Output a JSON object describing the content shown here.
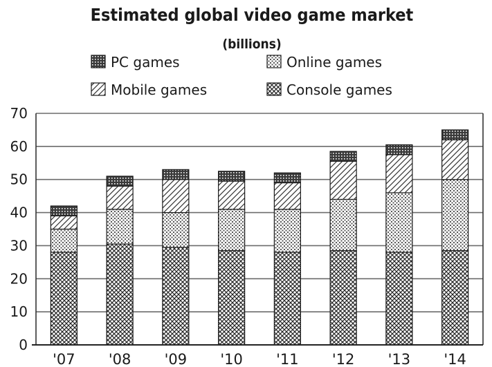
{
  "chart_data": {
    "type": "bar",
    "stacked": true,
    "title": "Estimated global video game market",
    "subtitle": "(billions)",
    "categories": [
      "'07",
      "'08",
      "'09",
      "'10",
      "'11",
      "'12",
      "'13",
      "'14"
    ],
    "series": [
      {
        "name": "Console games",
        "values": [
          28,
          30.5,
          29.5,
          28.5,
          28,
          28.5,
          28,
          28.5
        ],
        "pattern": "crosshatch"
      },
      {
        "name": "Online games",
        "values": [
          7,
          10.5,
          10.5,
          12.5,
          13,
          15.5,
          18,
          21.5
        ],
        "pattern": "dots"
      },
      {
        "name": "Mobile games",
        "values": [
          4,
          7,
          10,
          8.5,
          8,
          11.5,
          11.5,
          12
        ],
        "pattern": "diagonal"
      },
      {
        "name": "PC games",
        "values": [
          3,
          3,
          3,
          3,
          3,
          3,
          3,
          3
        ],
        "pattern": "dark-dots"
      }
    ],
    "ylim": [
      0,
      70
    ],
    "yticks": [
      0,
      10,
      20,
      30,
      40,
      50,
      60,
      70
    ],
    "grid": true,
    "legend": {
      "placement": "top",
      "order": [
        "PC games",
        "Online games",
        "Mobile games",
        "Console games"
      ]
    }
  }
}
